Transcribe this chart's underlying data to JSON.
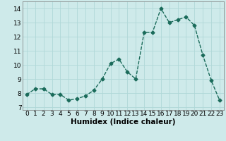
{
  "x": [
    0,
    1,
    2,
    3,
    4,
    5,
    6,
    7,
    8,
    9,
    10,
    11,
    12,
    13,
    14,
    15,
    16,
    17,
    18,
    19,
    20,
    21,
    22,
    23
  ],
  "y": [
    7.9,
    8.3,
    8.3,
    7.9,
    7.9,
    7.5,
    7.6,
    7.8,
    8.2,
    9.0,
    10.1,
    10.4,
    9.5,
    9.0,
    12.3,
    12.3,
    14.0,
    13.0,
    13.2,
    13.4,
    12.8,
    10.7,
    8.9,
    7.5
  ],
  "line_color": "#1a6b5a",
  "marker": "D",
  "marker_size": 2.5,
  "linewidth": 1.0,
  "bg_color": "#ceeaea",
  "grid_color": "#b0d8d8",
  "xlabel": "Humidex (Indice chaleur)",
  "xlabel_fontsize": 7.5,
  "tick_fontsize": 6.5,
  "ylim": [
    6.8,
    14.5
  ],
  "xlim": [
    -0.5,
    23.5
  ],
  "yticks": [
    7,
    8,
    9,
    10,
    11,
    12,
    13,
    14
  ],
  "xticks": [
    0,
    1,
    2,
    3,
    4,
    5,
    6,
    7,
    8,
    9,
    10,
    11,
    12,
    13,
    14,
    15,
    16,
    17,
    18,
    19,
    20,
    21,
    22,
    23
  ]
}
